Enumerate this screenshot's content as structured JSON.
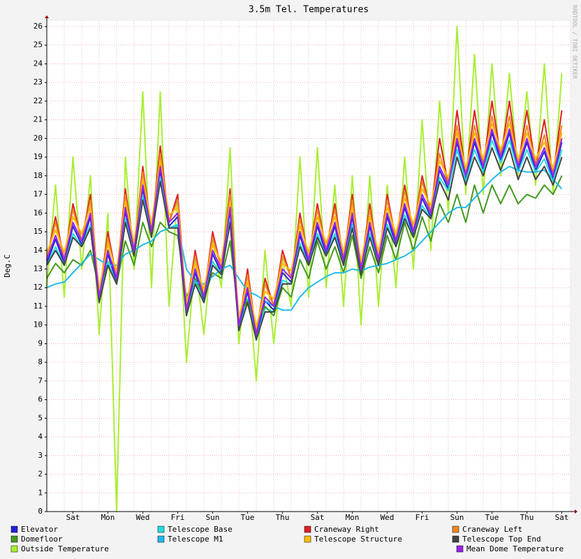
{
  "chart_data": {
    "type": "line",
    "title": "3.5m Tel. Temperatures",
    "y_label": "Deg.C",
    "watermark": "RRDTOOL / TOBI OETIKER",
    "categories": [
      null,
      null,
      null,
      "Sat",
      null,
      null,
      null,
      "Mon",
      null,
      null,
      null,
      "Wed",
      null,
      null,
      null,
      "Fri",
      null,
      null,
      null,
      "Sun",
      null,
      null,
      null,
      "Tue",
      null,
      null,
      null,
      "Thu",
      null,
      null,
      null,
      "Sat",
      null,
      null,
      null,
      "Mon",
      null,
      null,
      null,
      "Wed",
      null,
      null,
      null,
      "Fri",
      null,
      null,
      null,
      "Sun",
      null,
      null,
      null,
      "Tue",
      null,
      null,
      null,
      "Thu",
      null,
      null,
      null,
      "Sat"
    ],
    "ylim": [
      0,
      26.3
    ],
    "yticks": [
      0,
      1,
      2,
      3,
      4,
      5,
      6,
      7,
      8,
      9,
      10,
      11,
      12,
      13,
      14,
      15,
      16,
      17,
      18,
      19,
      20,
      21,
      22,
      23,
      24,
      25,
      26
    ],
    "grid": true,
    "series": [
      {
        "name": "Elevator",
        "color": "#2222dd",
        "values": [
          13.3,
          14.6,
          13.3,
          15.3,
          14.3,
          15.8,
          11.3,
          13.8,
          12.3,
          16.1,
          13.8,
          17.3,
          14.8,
          18.3,
          15.3,
          15.8,
          10.6,
          12.8,
          11.3,
          13.8,
          12.8,
          16.1,
          9.8,
          11.8,
          9.3,
          11.3,
          10.8,
          12.8,
          12.3,
          14.8,
          13.3,
          15.3,
          13.8,
          15.3,
          13.3,
          15.8,
          12.8,
          15.3,
          13.3,
          15.8,
          14.3,
          16.3,
          14.8,
          16.8,
          15.8,
          18.3,
          17.3,
          19.8,
          17.8,
          19.8,
          18.3,
          20.3,
          18.8,
          20.3,
          18.3,
          19.8,
          18.3,
          19.3,
          17.8,
          19.8
        ]
      },
      {
        "name": "Telescope Base",
        "color": "#22dddd",
        "values": [
          13.2,
          14.2,
          13.2,
          14.9,
          14.2,
          15.4,
          11.2,
          13.4,
          12.2,
          15.7,
          13.7,
          16.9,
          14.7,
          17.9,
          15.2,
          15.4,
          10.5,
          12.4,
          11.2,
          13.4,
          12.7,
          15.7,
          9.7,
          11.4,
          9.2,
          10.9,
          10.7,
          12.4,
          12.2,
          14.4,
          13.2,
          14.9,
          13.7,
          14.9,
          13.2,
          15.4,
          12.7,
          14.9,
          13.2,
          15.4,
          14.2,
          15.9,
          14.7,
          16.4,
          15.7,
          17.9,
          17.2,
          19.4,
          17.7,
          19.4,
          18.2,
          19.9,
          18.7,
          19.9,
          18.2,
          19.4,
          18.2,
          18.9,
          17.7,
          19.4
        ]
      },
      {
        "name": "Craneway Right",
        "color": "#dd2222",
        "values": [
          13.5,
          15.8,
          13.5,
          16.5,
          14.5,
          17,
          11.5,
          15,
          12.5,
          17.3,
          14,
          18.5,
          15,
          19.6,
          15.5,
          17,
          10.8,
          14,
          11.5,
          15,
          13,
          17.3,
          10,
          13,
          9.5,
          12.5,
          11,
          14,
          12.5,
          16,
          13.5,
          16.5,
          14,
          16.5,
          13.5,
          17,
          13,
          16.5,
          13.5,
          17,
          14.5,
          17.5,
          15,
          18,
          16,
          20,
          17.5,
          21.5,
          18,
          21.5,
          18.5,
          22,
          19,
          22,
          18.5,
          21.5,
          18.5,
          21,
          18,
          21.5
        ]
      },
      {
        "name": "Craneway Left",
        "color": "#ee8822",
        "values": [
          13.5,
          15.5,
          13.5,
          16.2,
          14.5,
          16.7,
          11.5,
          14.7,
          12.5,
          17,
          14,
          18.2,
          15,
          19.2,
          15.5,
          16.7,
          10.8,
          13.7,
          11.5,
          14.7,
          13,
          17,
          10,
          12.7,
          9.5,
          12.2,
          11,
          13.7,
          12.5,
          15.7,
          13.5,
          16.2,
          14,
          16.2,
          13.5,
          16.7,
          13,
          16.2,
          13.5,
          16.7,
          14.5,
          17.2,
          15,
          17.7,
          16,
          19.2,
          17.5,
          20.7,
          18,
          20.7,
          18.5,
          21.2,
          19,
          21.2,
          18.5,
          20.7,
          18.5,
          20.2,
          18,
          20.7
        ]
      },
      {
        "name": "Domefloor",
        "color": "#449922",
        "values": [
          12.5,
          13.3,
          12.8,
          13.5,
          13.2,
          14,
          12,
          13.2,
          12.2,
          14.5,
          13.2,
          15.5,
          14.2,
          15.5,
          15,
          14.8,
          11.5,
          12.5,
          11.5,
          12.8,
          12.5,
          14.5,
          10.5,
          11.3,
          10,
          11,
          10.5,
          12,
          11.5,
          13.5,
          12.5,
          14.5,
          13,
          14.2,
          12.8,
          14.8,
          12.5,
          14.2,
          12.8,
          14.8,
          13.5,
          15.5,
          14,
          15.8,
          14.5,
          16.5,
          15.5,
          17,
          15.5,
          17.5,
          16,
          17.5,
          16.5,
          17.5,
          16.5,
          17,
          16.8,
          17.5,
          17,
          18
        ]
      },
      {
        "name": "Telescope M1",
        "color": "#22bbee",
        "values": [
          12,
          12.2,
          12.3,
          12.8,
          13.3,
          13.8,
          13.5,
          13.2,
          13.2,
          13.8,
          14,
          14.3,
          14.5,
          15,
          15.2,
          15.3,
          13,
          12.3,
          12.2,
          12.6,
          13,
          13.2,
          12.5,
          11.8,
          11.6,
          11.3,
          11,
          10.8,
          10.8,
          11.5,
          12,
          12.3,
          12.6,
          12.8,
          12.8,
          13,
          12.9,
          13.1,
          13.2,
          13.3,
          13.5,
          13.7,
          14,
          14.5,
          15,
          15.5,
          16,
          16.3,
          16.3,
          16.8,
          17.3,
          17.8,
          18.2,
          18.5,
          18.3,
          18.2,
          18.2,
          18.3,
          17.8,
          17.3
        ]
      },
      {
        "name": "Telescope Structure",
        "color": "#ffbb00",
        "values": [
          13.9,
          15.1,
          13.9,
          15.8,
          14.9,
          16.3,
          11.9,
          14.3,
          12.9,
          16.6,
          14.4,
          17.8,
          15.4,
          18.8,
          15.9,
          16.3,
          11.2,
          13.3,
          11.9,
          14.3,
          13.4,
          16.6,
          10.4,
          12.3,
          9.9,
          11.8,
          11.4,
          13.3,
          12.9,
          15.3,
          13.9,
          15.8,
          14.4,
          15.8,
          13.9,
          16.3,
          13.4,
          15.8,
          13.9,
          16.3,
          14.9,
          16.8,
          15.4,
          17.3,
          16.4,
          18.8,
          17.9,
          20.3,
          18.4,
          20.3,
          18.9,
          20.8,
          19.4,
          20.8,
          18.9,
          20.3,
          18.9,
          19.8,
          18.4,
          20.3
        ]
      },
      {
        "name": "Telescope Top End",
        "color": "#444444",
        "values": [
          13.2,
          14,
          13.2,
          14.7,
          14.2,
          15.2,
          11.2,
          13.2,
          12.2,
          15.5,
          13.7,
          16.7,
          14.7,
          17.7,
          15.2,
          15.2,
          10.5,
          12.2,
          11.2,
          13.2,
          12.7,
          15.5,
          9.7,
          11.2,
          9.2,
          10.7,
          10.7,
          12.2,
          12.2,
          14.2,
          13.2,
          14.7,
          13.7,
          14.7,
          13.2,
          15.2,
          12.7,
          14.7,
          13.2,
          15.2,
          14.2,
          15.7,
          14.7,
          16.2,
          15.7,
          17.7,
          16.7,
          19,
          17.5,
          19,
          18,
          19.5,
          18.3,
          19.5,
          17.8,
          19,
          17.8,
          18.5,
          17.5,
          19
        ]
      },
      {
        "name": "Outside Temperature",
        "color": "#aaee33",
        "values": [
          12,
          17.5,
          11.5,
          19,
          13,
          18,
          9.5,
          16,
          0,
          19,
          13,
          22.5,
          12,
          22.5,
          11,
          17,
          8,
          13.5,
          9.5,
          14.5,
          12,
          19.5,
          9,
          13,
          7,
          14,
          9,
          13.5,
          11,
          19,
          11.5,
          19.5,
          12,
          17.5,
          11,
          18,
          10,
          18,
          11,
          17.5,
          12,
          19,
          13,
          21,
          14,
          22,
          16,
          26,
          17,
          24.5,
          17,
          24,
          18,
          23.5,
          18,
          22.5,
          17.5,
          24,
          17,
          23.5
        ]
      },
      {
        "name": "Mean Dome Temperature",
        "color": "#9922ee",
        "values": [
          13.5,
          14.8,
          13.5,
          15.5,
          14.5,
          16,
          11.5,
          14,
          12.5,
          16.3,
          14,
          17.5,
          15,
          18.5,
          15.5,
          16,
          10.8,
          13,
          11.5,
          14,
          13,
          16.3,
          10,
          12,
          9.5,
          11.5,
          11,
          13,
          12.5,
          15,
          13.5,
          15.5,
          14,
          15.5,
          13.5,
          16,
          13,
          15.5,
          13.5,
          16,
          14.5,
          16.5,
          15,
          17,
          16,
          18.5,
          17.5,
          20,
          18,
          20,
          18.5,
          20.5,
          19,
          20.5,
          18.5,
          20,
          18.5,
          19.5,
          18,
          20
        ]
      }
    ]
  }
}
